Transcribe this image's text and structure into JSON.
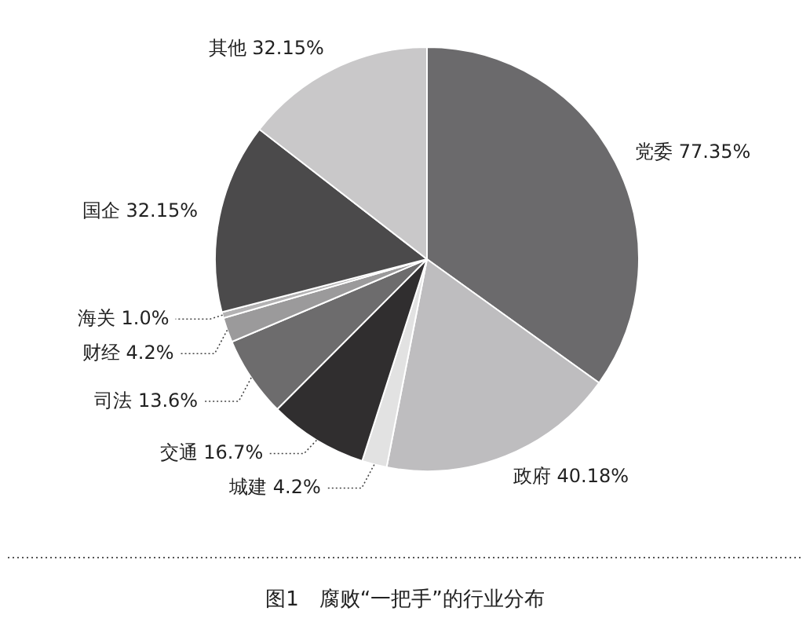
{
  "chart_data": {
    "type": "pie",
    "title": "图1　腐败“一把手”的行业分布",
    "categories": [
      "党委",
      "政府",
      "城建",
      "交通",
      "司法",
      "财经",
      "海关",
      "国企",
      "其他"
    ],
    "values": [
      77.35,
      40.18,
      4.2,
      16.7,
      13.6,
      4.2,
      1.0,
      32.15,
      32.15
    ],
    "value_labels": [
      "77.35%",
      "40.18%",
      "4.2%",
      "16.7%",
      "13.6%",
      "4.2%",
      "1.0%",
      "32.15%",
      "32.15%"
    ],
    "colors": [
      "#6b6a6c",
      "#bebdbf",
      "#e2e2e2",
      "#302e2f",
      "#6d6c6d",
      "#9b9a9b",
      "#b3b2b3",
      "#4b4a4b",
      "#c9c8c9"
    ]
  }
}
